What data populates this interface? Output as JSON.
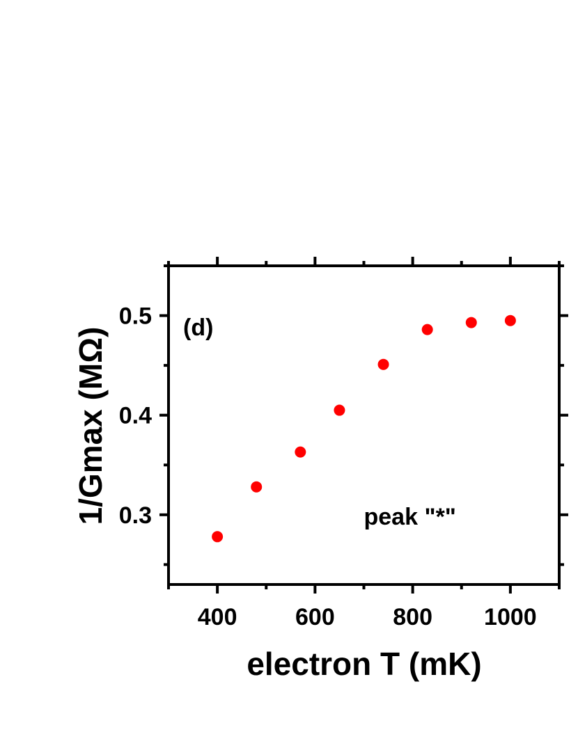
{
  "chart_data": {
    "type": "scatter",
    "xlabel": "electron T (mK)",
    "ylabel": "1/Gmax (MΩ)",
    "xlim": [
      300,
      1100
    ],
    "ylim": [
      0.23,
      0.55
    ],
    "xticks": [
      400,
      600,
      800,
      1000
    ],
    "yticks": [
      0.3,
      0.4,
      0.5
    ],
    "xtick_labels": [
      "400",
      "600",
      "800",
      "1000"
    ],
    "ytick_labels": [
      "0.3",
      "0.4",
      "0.5"
    ],
    "x_minor_ticks": [
      300,
      500,
      700,
      900,
      1100
    ],
    "y_minor_ticks": [
      0.25,
      0.35,
      0.45,
      0.55
    ],
    "grid": false,
    "annotations": [
      {
        "text": "(d)",
        "x": 330,
        "y": 0.48
      },
      {
        "text": "peak \"*\"",
        "x": 700,
        "y": 0.29
      }
    ],
    "series": [
      {
        "color": "#ff0000",
        "x": [
          400,
          480,
          570,
          650,
          740,
          830,
          920,
          1000
        ],
        "y": [
          0.278,
          0.328,
          0.363,
          0.405,
          0.451,
          0.486,
          0.493,
          0.495
        ]
      }
    ]
  }
}
